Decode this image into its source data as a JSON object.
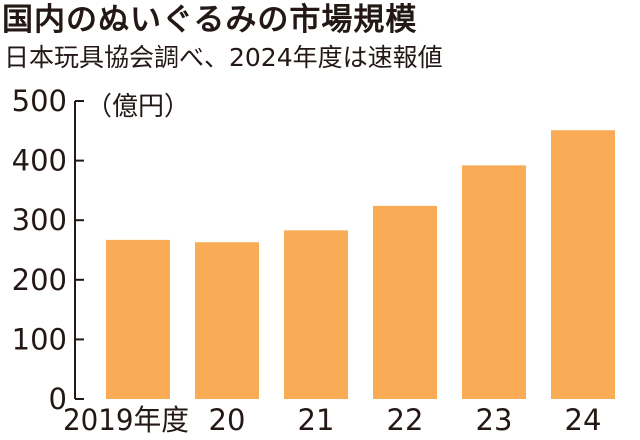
{
  "header": {
    "title": "国内のぬいぐるみの市場規模",
    "subtitle": "日本玩具協会調べ、2024年度は速報値"
  },
  "colors": {
    "bar": "#F9AB56",
    "axis": "#231815",
    "text": "#231815"
  },
  "chart_data": {
    "type": "bar",
    "title": "国内のぬいぐるみの市場規模",
    "subtitle": "日本玩具協会調べ、2024年度は速報値",
    "unit_label": "（億円）",
    "categories": [
      "2019年度",
      "20",
      "21",
      "22",
      "23",
      "24"
    ],
    "values": [
      267,
      263,
      283,
      324,
      392,
      451
    ],
    "ylim": [
      0,
      500
    ],
    "yticks": [
      0,
      100,
      200,
      300,
      400,
      500
    ],
    "xlabel": "",
    "ylabel": "",
    "grid": false,
    "legend": false
  }
}
